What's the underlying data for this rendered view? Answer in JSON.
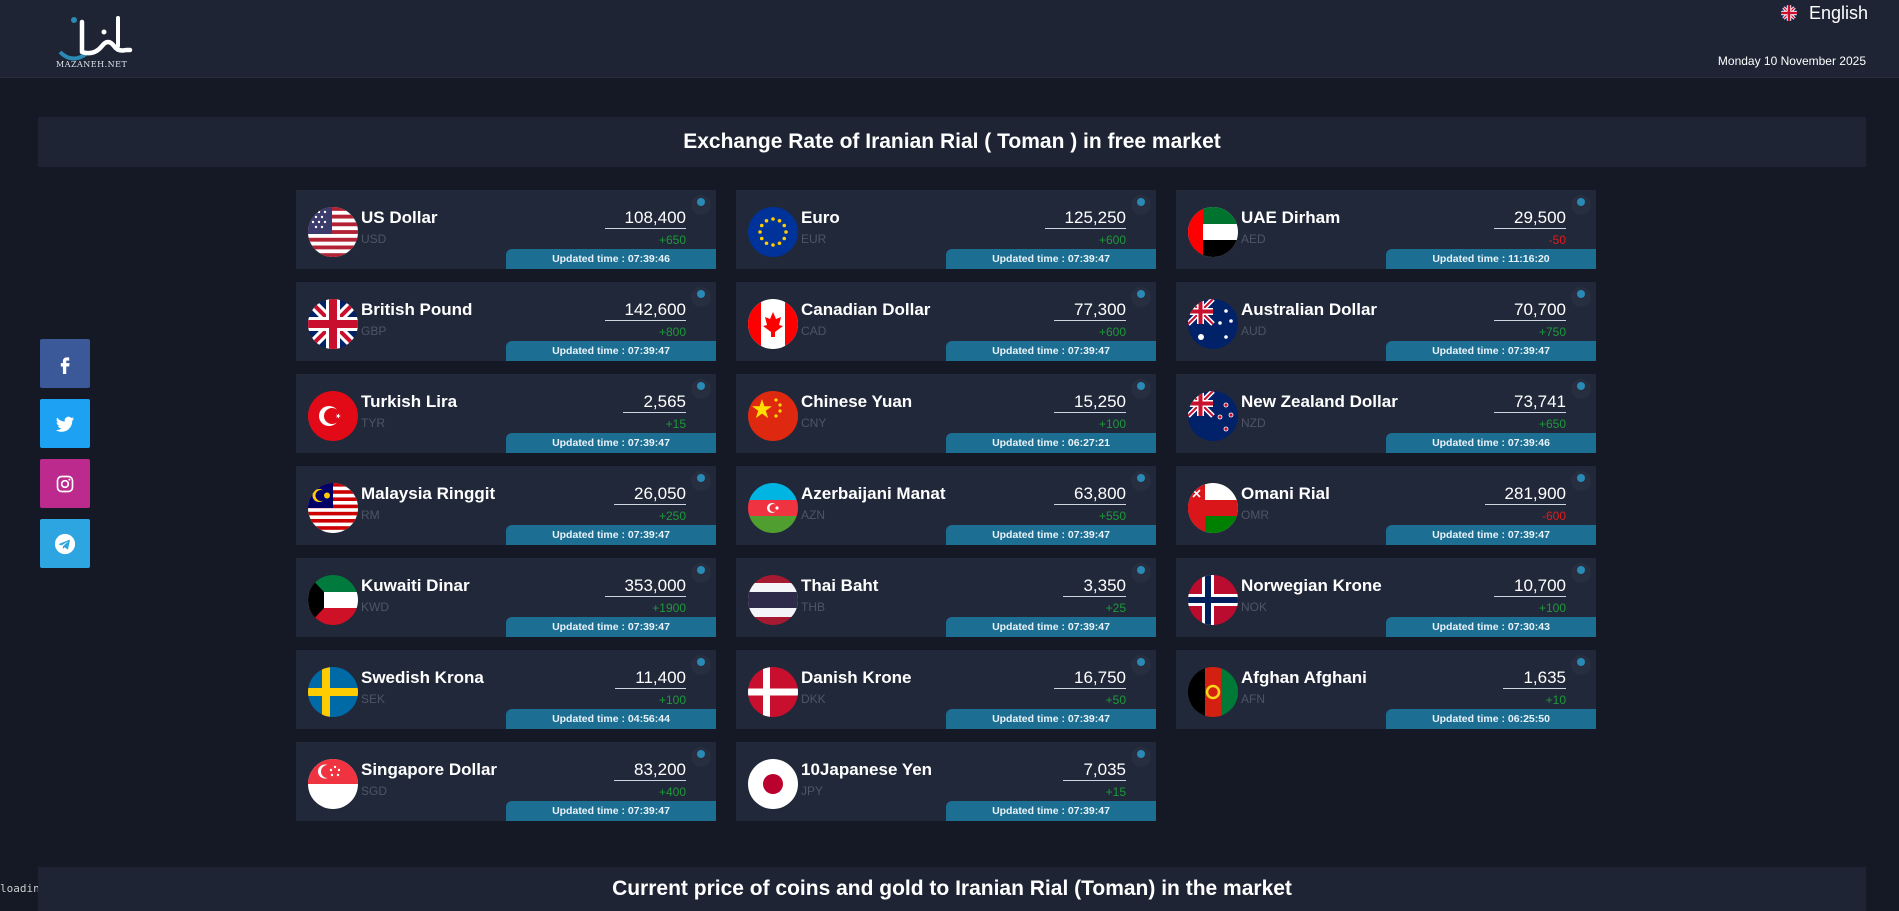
{
  "header": {
    "logo_text": "MAZANEH.NET",
    "language": "English",
    "date": "Monday 10 November 2025"
  },
  "sections": {
    "currencies_title": "Exchange Rate of Iranian Rial ( Toman ) in free market",
    "coins_title": "Current price of coins and gold to Iranian Rial (Toman) in the market"
  },
  "social": [
    "facebook-icon",
    "twitter-icon",
    "instagram-icon",
    "telegram-icon"
  ],
  "loading_text": "loading",
  "currencies": [
    {
      "name": "US Dollar",
      "code": "USD",
      "price": "108,400",
      "change": "+650",
      "dir": "up",
      "updated": "Updated time : 07:39:46",
      "flag": "us"
    },
    {
      "name": "Euro",
      "code": "EUR",
      "price": "125,250",
      "change": "+600",
      "dir": "up",
      "updated": "Updated time : 07:39:47",
      "flag": "eu"
    },
    {
      "name": "UAE Dirham",
      "code": "AED",
      "price": "29,500",
      "change": "-50",
      "dir": "down",
      "updated": "Updated time : 11:16:20",
      "flag": "ae"
    },
    {
      "name": "British Pound",
      "code": "GBP",
      "price": "142,600",
      "change": "+800",
      "dir": "up",
      "updated": "Updated time : 07:39:47",
      "flag": "gb"
    },
    {
      "name": "Canadian Dollar",
      "code": "CAD",
      "price": "77,300",
      "change": "+600",
      "dir": "up",
      "updated": "Updated time : 07:39:47",
      "flag": "ca"
    },
    {
      "name": "Australian Dollar",
      "code": "AUD",
      "price": "70,700",
      "change": "+750",
      "dir": "up",
      "updated": "Updated time : 07:39:47",
      "flag": "au"
    },
    {
      "name": "Turkish Lira",
      "code": "TYR",
      "price": "2,565",
      "change": "+15",
      "dir": "up",
      "updated": "Updated time : 07:39:47",
      "flag": "tr"
    },
    {
      "name": "Chinese Yuan",
      "code": "CNY",
      "price": "15,250",
      "change": "+100",
      "dir": "up",
      "updated": "Updated time : 06:27:21",
      "flag": "cn"
    },
    {
      "name": "New Zealand Dollar",
      "code": "NZD",
      "price": "73,741",
      "change": "+650",
      "dir": "up",
      "updated": "Updated time : 07:39:46",
      "flag": "nz"
    },
    {
      "name": "Malaysia Ringgit",
      "code": "RM",
      "price": "26,050",
      "change": "+250",
      "dir": "up",
      "updated": "Updated time : 07:39:47",
      "flag": "my"
    },
    {
      "name": "Azerbaijani Manat",
      "code": "AZN",
      "price": "63,800",
      "change": "+550",
      "dir": "up",
      "updated": "Updated time : 07:39:47",
      "flag": "az"
    },
    {
      "name": "Omani Rial",
      "code": "OMR",
      "price": "281,900",
      "change": "-600",
      "dir": "down",
      "updated": "Updated time : 07:39:47",
      "flag": "om"
    },
    {
      "name": "Kuwaiti Dinar",
      "code": "KWD",
      "price": "353,000",
      "change": "+1900",
      "dir": "up",
      "updated": "Updated time : 07:39:47",
      "flag": "kw"
    },
    {
      "name": "Thai Baht",
      "code": "THB",
      "price": "3,350",
      "change": "+25",
      "dir": "up",
      "updated": "Updated time : 07:39:47",
      "flag": "th"
    },
    {
      "name": "Norwegian Krone",
      "code": "NOK",
      "price": "10,700",
      "change": "+100",
      "dir": "up",
      "updated": "Updated time : 07:30:43",
      "flag": "no"
    },
    {
      "name": "Swedish Krona",
      "code": "SEK",
      "price": "11,400",
      "change": "+100",
      "dir": "up",
      "updated": "Updated time : 04:56:44",
      "flag": "se"
    },
    {
      "name": "Danish Krone",
      "code": "DKK",
      "price": "16,750",
      "change": "+50",
      "dir": "up",
      "updated": "Updated time : 07:39:47",
      "flag": "dk"
    },
    {
      "name": "Afghan Afghani",
      "code": "AFN",
      "price": "1,635",
      "change": "+10",
      "dir": "up",
      "updated": "Updated time : 06:25:50",
      "flag": "af"
    },
    {
      "name": "Singapore Dollar",
      "code": "SGD",
      "price": "83,200",
      "change": "+400",
      "dir": "up",
      "updated": "Updated time : 07:39:47",
      "flag": "sg"
    },
    {
      "name": "10Japanese Yen",
      "code": "JPY",
      "price": "7,035",
      "change": "+15",
      "dir": "up",
      "updated": "Updated time : 07:39:47",
      "flag": "jp"
    }
  ]
}
